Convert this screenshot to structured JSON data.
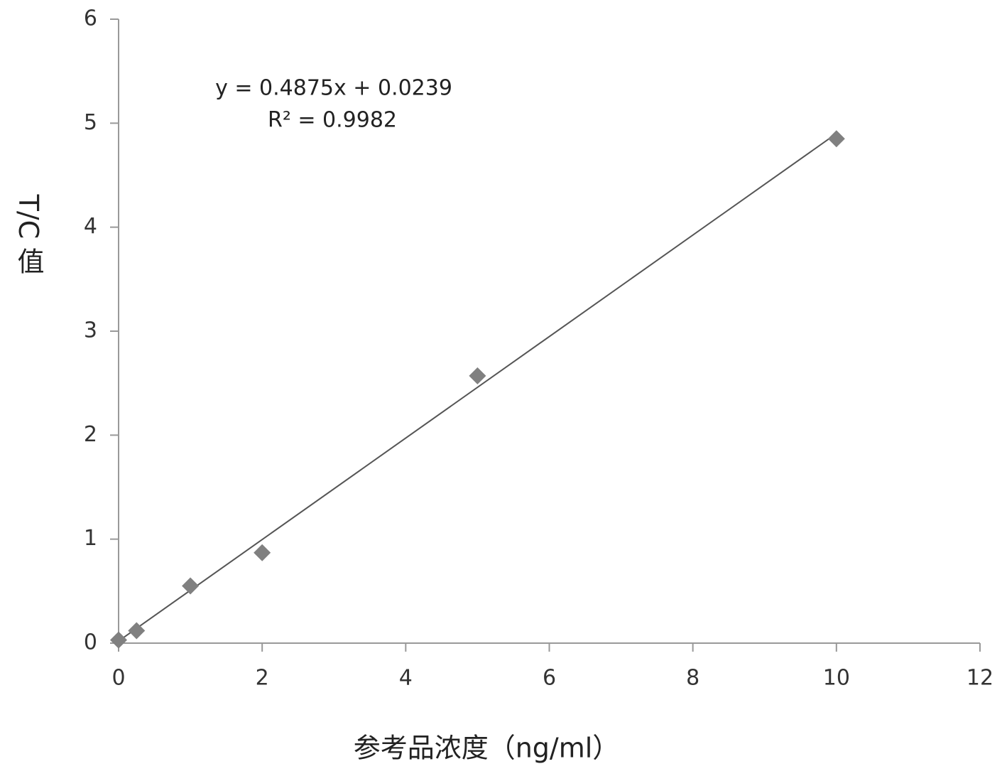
{
  "chart_data": {
    "type": "scatter",
    "x_label": "参考品浓度（ng/ml）",
    "y_label": "T/C 值",
    "annotations": [
      "y = 0.4875x + 0.0239",
      "R² = 0.9982"
    ],
    "series": [
      {
        "color": "#808080",
        "x": [
          0,
          0.25,
          1,
          2,
          5,
          10
        ],
        "values": [
          0.03,
          0.12,
          0.55,
          0.87,
          2.57,
          4.85
        ]
      }
    ],
    "trendline": {
      "color": "#555555",
      "x": [
        0,
        10
      ],
      "values": [
        0.02,
        4.9
      ]
    },
    "xlim": [
      0,
      12
    ],
    "xticks": [
      0,
      2,
      4,
      6,
      8,
      10,
      12
    ],
    "ylim": [
      0,
      6
    ],
    "yticks": [
      0,
      1,
      2,
      3,
      4,
      5,
      6
    ],
    "grid": false
  }
}
